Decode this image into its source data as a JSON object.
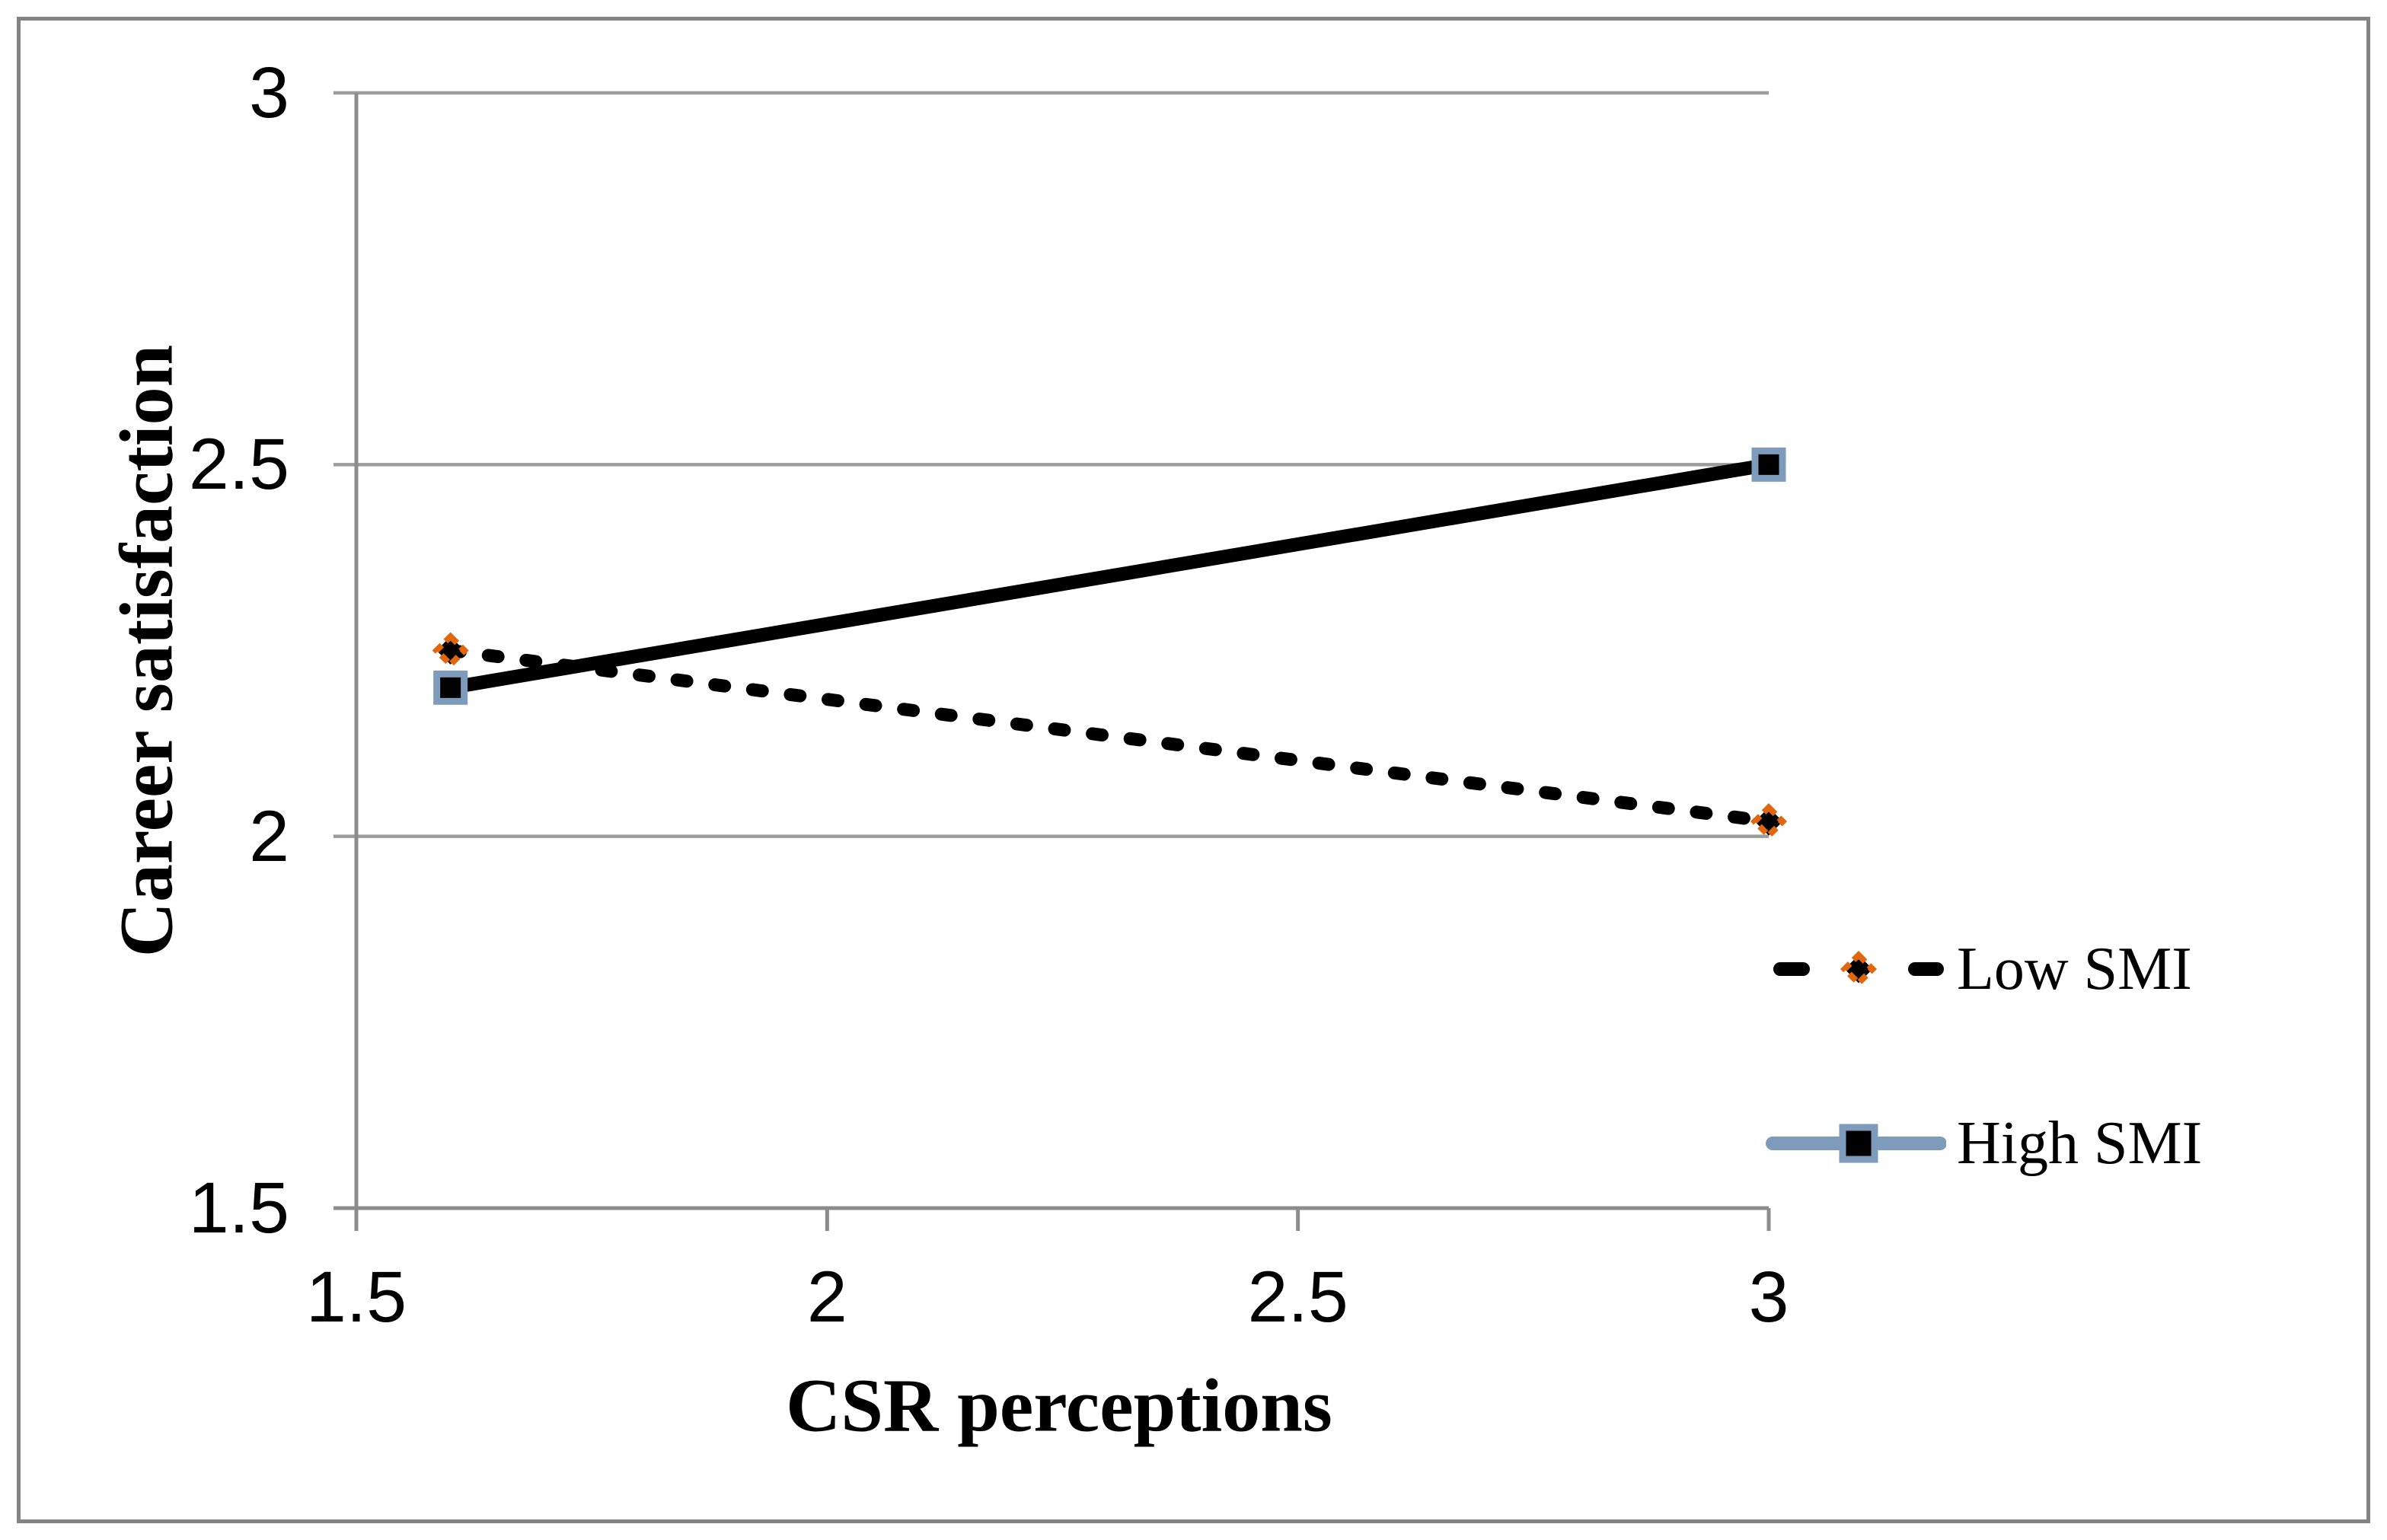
{
  "figure": {
    "background": "#FFFFFF",
    "border_color": "#838383"
  },
  "chart_data": {
    "type": "line",
    "title": "",
    "xlabel": "CSR perceptions",
    "ylabel": "Career satisfaction",
    "xlim": [
      1.5,
      3
    ],
    "ylim": [
      1.5,
      3
    ],
    "x_ticks": [
      {
        "value": 1.5,
        "label": "1.5"
      },
      {
        "value": 2,
        "label": "2"
      },
      {
        "value": 2.5,
        "label": "2.5"
      },
      {
        "value": 3,
        "label": "3"
      }
    ],
    "y_ticks": [
      {
        "value": 1.5,
        "label": "1.5"
      },
      {
        "value": 2,
        "label": "2"
      },
      {
        "value": 2.5,
        "label": "2.5"
      },
      {
        "value": 3,
        "label": "3"
      }
    ],
    "grid": "horizontal-only",
    "legend_position": "right",
    "axis_color": "#8C8C8C",
    "grid_color": "#9C9C9C",
    "text_color": "#000000",
    "series": [
      {
        "name": "Low SMI",
        "x": [
          1.6,
          3
        ],
        "y": [
          2.25,
          2.02
        ],
        "line_style": "dashed",
        "line_color": "#000000",
        "marker": "diamond",
        "marker_fill": "#000000",
        "marker_border_color": "#E2660D",
        "legend_line_color": "#000000"
      },
      {
        "name": "High SMI",
        "x": [
          1.6,
          3
        ],
        "y": [
          2.2,
          2.5
        ],
        "line_style": "solid",
        "line_color": "#000000",
        "marker": "square",
        "marker_fill": "#000000",
        "marker_border_color": "#7E9BBB",
        "legend_line_color": "#7E9BBB"
      }
    ]
  }
}
